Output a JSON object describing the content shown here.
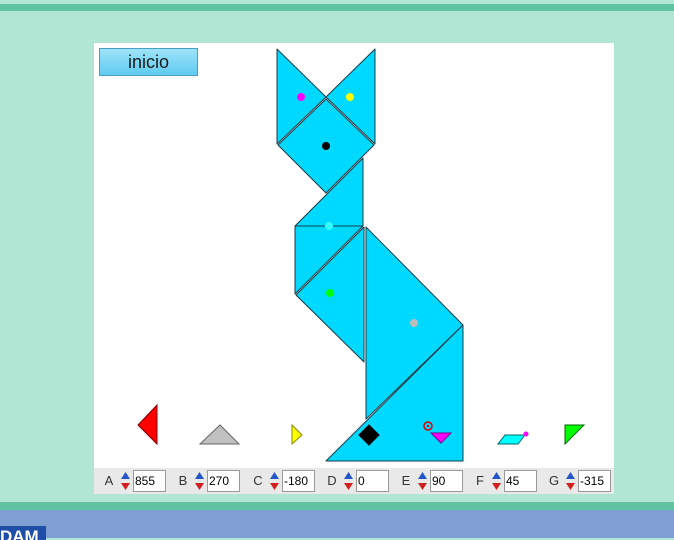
{
  "app": {
    "start_button_label": "inicio",
    "brand_text": "DAM"
  },
  "controls": [
    {
      "label": "A",
      "value": "855"
    },
    {
      "label": "B",
      "value": "270"
    },
    {
      "label": "C",
      "value": "-180"
    },
    {
      "label": "D",
      "value": "0"
    },
    {
      "label": "E",
      "value": "90"
    },
    {
      "label": "F",
      "value": "45"
    },
    {
      "label": "G",
      "value": "-315"
    }
  ],
  "colors": {
    "figure_fill": "#00d9ff",
    "piece_A": "#ff0000",
    "piece_B": "#c0c0c0",
    "piece_C": "#ffff00",
    "piece_D": "#000000",
    "piece_E": "#ff00ff",
    "piece_F": "#00ffff",
    "piece_G": "#00ff00"
  }
}
